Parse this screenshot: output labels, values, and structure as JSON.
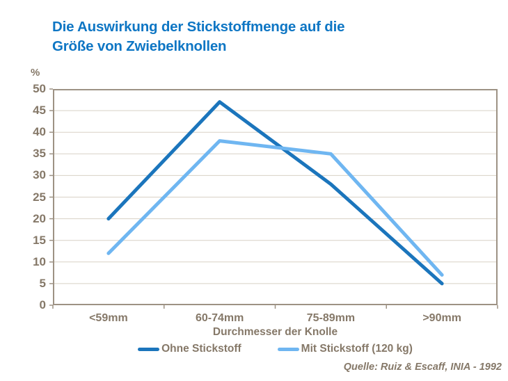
{
  "title": {
    "line1": "Die Auswirkung der Stickstoffmenge auf die",
    "line2": "Größe von Zwiebelknollen"
  },
  "source": "Quelle: Ruiz & Escaff, INIA - 1992",
  "colors": {
    "title_blue": "#0E76C4",
    "text_brown": "#857868",
    "axis_line": "#9D9284",
    "gridline": "#D8D1C5",
    "background": "#FFFFFF"
  },
  "chart_data": {
    "type": "line",
    "categories": [
      "<59mm",
      "60-74mm",
      "75-89mm",
      ">90mm"
    ],
    "series": [
      {
        "name": "Ohne Stickstoff",
        "color": "#1B75BC",
        "values": [
          20,
          47,
          28,
          5
        ]
      },
      {
        "name": "Mit Stickstoff (120 kg)",
        "color": "#6FB6F1",
        "values": [
          12,
          38,
          35,
          7
        ]
      }
    ],
    "xlabel": "Durchmesser der Knolle",
    "ylabel": "%",
    "ylim": [
      0,
      50
    ],
    "ytick_step": 5,
    "grid": true,
    "legend_position": "bottom"
  }
}
